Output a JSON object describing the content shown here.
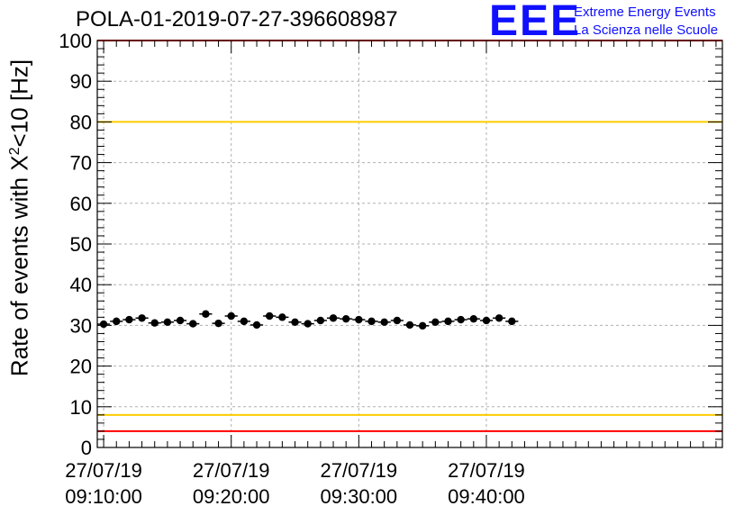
{
  "title": "POLA-01-2019-07-27-396608987",
  "logo": {
    "mark": "EEE",
    "line1": "Extreme Energy Events",
    "line2": "La Scienza nelle Scuole"
  },
  "y_axis_label": {
    "prefix": "Rate of events with X",
    "sup": "2",
    "suffix": "<10 [Hz]"
  },
  "colors": {
    "limit_red": "#ff0000",
    "limit_yellow": "#ffcc00",
    "points": "#000000",
    "logo": "#1010ff"
  },
  "chart_data": {
    "type": "scatter",
    "ylim": [
      0,
      100
    ],
    "xlim_minutes": [
      0,
      49
    ],
    "x_unit": "minutes after 27/07/19 09:09:30",
    "yticks": [
      0,
      10,
      20,
      30,
      40,
      50,
      60,
      70,
      80,
      90,
      100
    ],
    "xticks": [
      {
        "minute": 0.5,
        "date": "27/07/19",
        "time": "09:10:00"
      },
      {
        "minute": 10.5,
        "date": "27/07/19",
        "time": "09:20:00"
      },
      {
        "minute": 20.5,
        "date": "27/07/19",
        "time": "09:30:00"
      },
      {
        "minute": 30.5,
        "date": "27/07/19",
        "time": "09:40:00"
      }
    ],
    "grid": true,
    "hlines": [
      {
        "y": 100,
        "color": "red"
      },
      {
        "y": 80,
        "color": "yellow"
      },
      {
        "y": 8,
        "color": "yellow"
      },
      {
        "y": 4,
        "color": "red"
      }
    ],
    "x": [
      0.5,
      1.5,
      2.5,
      3.5,
      4.5,
      5.5,
      6.5,
      7.5,
      8.5,
      9.5,
      10.5,
      11.5,
      12.5,
      13.5,
      14.5,
      15.5,
      16.5,
      17.5,
      18.5,
      19.5,
      20.5,
      21.5,
      22.5,
      23.5,
      24.5,
      25.5,
      26.5,
      27.5,
      28.5,
      29.5,
      30.5,
      31.5,
      32.5
    ],
    "y": [
      30.3,
      31.0,
      31.4,
      31.8,
      30.6,
      30.8,
      31.2,
      30.4,
      32.8,
      30.5,
      32.3,
      31.0,
      30.1,
      32.3,
      32.0,
      30.8,
      30.4,
      31.2,
      31.8,
      31.6,
      31.4,
      31.0,
      30.8,
      31.2,
      30.1,
      29.9,
      30.8,
      31.0,
      31.4,
      31.6,
      31.2,
      31.8,
      31.0
    ]
  }
}
